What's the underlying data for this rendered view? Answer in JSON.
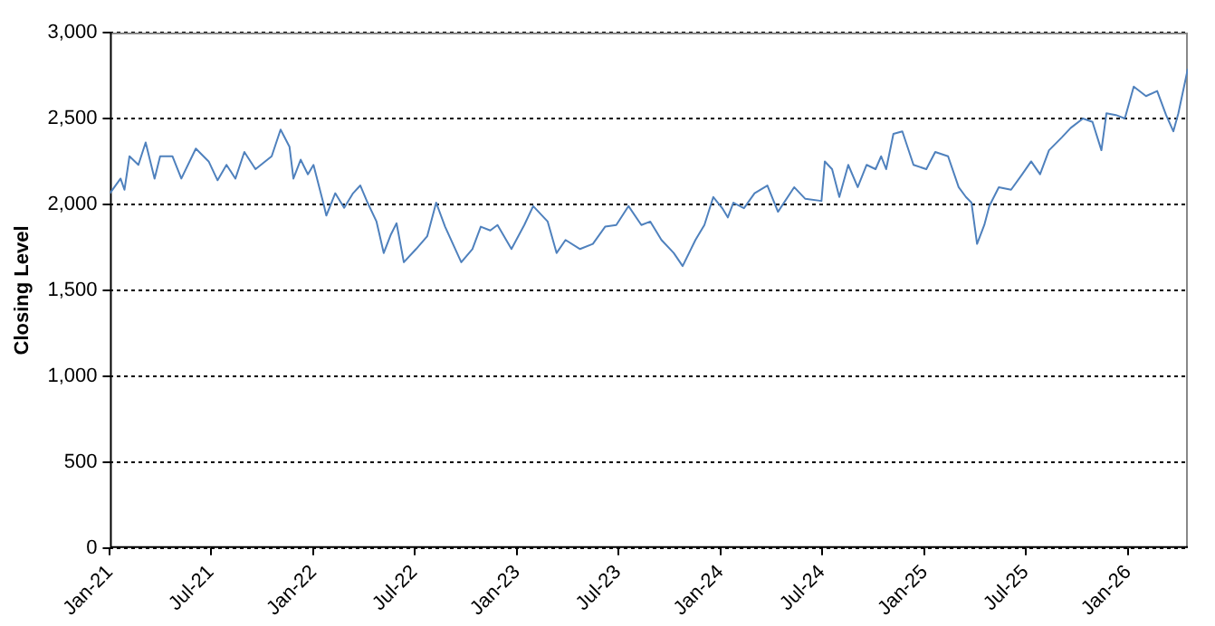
{
  "chart_data": {
    "type": "line",
    "ylabel": "Closing Level",
    "xlim": [
      "2021-01-01",
      "2026-04-18"
    ],
    "ylim": [
      0,
      3000
    ],
    "xticks": [
      {
        "value": "2021-01-01",
        "label": "Jan-21"
      },
      {
        "value": "2021-07-01",
        "label": "Jul-21"
      },
      {
        "value": "2022-01-01",
        "label": "Jan-22"
      },
      {
        "value": "2022-07-01",
        "label": "Jul-22"
      },
      {
        "value": "2023-01-01",
        "label": "Jan-23"
      },
      {
        "value": "2023-07-01",
        "label": "Jul-23"
      },
      {
        "value": "2024-01-01",
        "label": "Jan-24"
      },
      {
        "value": "2024-07-01",
        "label": "Jul-24"
      },
      {
        "value": "2025-01-01",
        "label": "Jan-25"
      },
      {
        "value": "2025-07-01",
        "label": "Jul-25"
      },
      {
        "value": "2026-01-01",
        "label": "Jan-26"
      }
    ],
    "yticks": [
      0,
      {
        "value": 500,
        "label": "500"
      },
      {
        "value": 1000,
        "label": "1,000"
      },
      {
        "value": 1500,
        "label": "1,500"
      },
      {
        "value": 2000,
        "label": "2,000"
      },
      {
        "value": 2500,
        "label": "2,500"
      },
      {
        "value": 3000,
        "label": "3,000"
      }
    ],
    "grid": "y",
    "legend": false,
    "marker": "none",
    "line_style": "solid",
    "series": [
      {
        "color": "#4f81bd",
        "x": [
          "2021-01-01",
          "2021-01-20",
          "2021-01-27",
          "2021-02-05",
          "2021-02-21",
          "2021-03-06",
          "2021-03-22",
          "2021-04-01",
          "2021-04-23",
          "2021-05-09",
          "2021-06-04",
          "2021-06-27",
          "2021-07-13",
          "2021-07-29",
          "2021-08-14",
          "2021-08-30",
          "2021-09-19",
          "2021-10-18",
          "2021-11-03",
          "2021-11-19",
          "2021-11-26",
          "2021-12-09",
          "2021-12-22",
          "2022-01-01",
          "2022-01-20",
          "2022-01-24",
          "2022-02-09",
          "2022-02-25",
          "2022-03-13",
          "2022-03-26",
          "2022-04-08",
          "2022-04-24",
          "2022-05-07",
          "2022-05-20",
          "2022-05-30",
          "2022-06-12",
          "2022-07-04",
          "2022-07-24",
          "2022-08-09",
          "2022-08-25",
          "2022-09-23",
          "2022-10-13",
          "2022-10-28",
          "2022-11-14",
          "2022-11-27",
          "2022-12-22",
          "2023-01-14",
          "2023-01-30",
          "2023-02-25",
          "2023-03-13",
          "2023-03-29",
          "2023-04-24",
          "2023-05-17",
          "2023-06-08",
          "2023-06-28",
          "2023-07-20",
          "2023-08-12",
          "2023-08-28",
          "2023-09-17",
          "2023-10-09",
          "2023-10-25",
          "2023-11-17",
          "2023-12-03",
          "2023-12-19",
          "2024-01-04",
          "2024-01-14",
          "2024-01-24",
          "2024-02-12",
          "2024-03-02",
          "2024-03-25",
          "2024-04-13",
          "2024-05-12",
          "2024-06-01",
          "2024-06-30",
          "2024-07-06",
          "2024-07-19",
          "2024-08-01",
          "2024-08-17",
          "2024-09-03",
          "2024-09-19",
          "2024-10-05",
          "2024-10-15",
          "2024-10-24",
          "2024-11-06",
          "2024-11-22",
          "2024-12-12",
          "2025-01-04",
          "2025-01-20",
          "2025-02-12",
          "2025-03-03",
          "2025-03-16",
          "2025-03-26",
          "2025-04-05",
          "2025-04-18",
          "2025-04-27",
          "2025-05-14",
          "2025-06-05",
          "2025-06-25",
          "2025-07-11",
          "2025-07-27",
          "2025-08-12",
          "2025-09-04",
          "2025-09-20",
          "2025-10-12",
          "2025-10-29",
          "2025-11-14",
          "2025-11-23",
          "2025-12-10",
          "2025-12-26",
          "2026-01-11",
          "2026-02-02",
          "2026-02-22",
          "2026-03-10",
          "2026-03-23",
          "2026-04-01",
          "2026-04-18"
        ],
        "values": [
          2065,
          2150,
          2085,
          2280,
          2230,
          2360,
          2150,
          2280,
          2280,
          2150,
          2325,
          2250,
          2140,
          2230,
          2150,
          2305,
          2205,
          2280,
          2435,
          2335,
          2150,
          2260,
          2175,
          2230,
          1990,
          1935,
          2065,
          1980,
          2065,
          2110,
          2010,
          1900,
          1717,
          1826,
          1890,
          1663,
          1740,
          1815,
          2010,
          1870,
          1663,
          1740,
          1870,
          1848,
          1880,
          1740,
          1880,
          1990,
          1900,
          1717,
          1793,
          1740,
          1770,
          1870,
          1880,
          1990,
          1880,
          1900,
          1793,
          1717,
          1641,
          1793,
          1880,
          2043,
          1978,
          1924,
          2010,
          1978,
          2065,
          2110,
          1957,
          2100,
          2032,
          2020,
          2250,
          2205,
          2043,
          2230,
          2100,
          2230,
          2205,
          2280,
          2205,
          2410,
          2425,
          2230,
          2205,
          2305,
          2280,
          2100,
          2043,
          2010,
          1770,
          1880,
          1990,
          2100,
          2085,
          2175,
          2250,
          2175,
          2315,
          2390,
          2445,
          2500,
          2480,
          2315,
          2530,
          2520,
          2500,
          2685,
          2630,
          2660,
          2520,
          2425,
          2530,
          2790
        ]
      }
    ]
  }
}
